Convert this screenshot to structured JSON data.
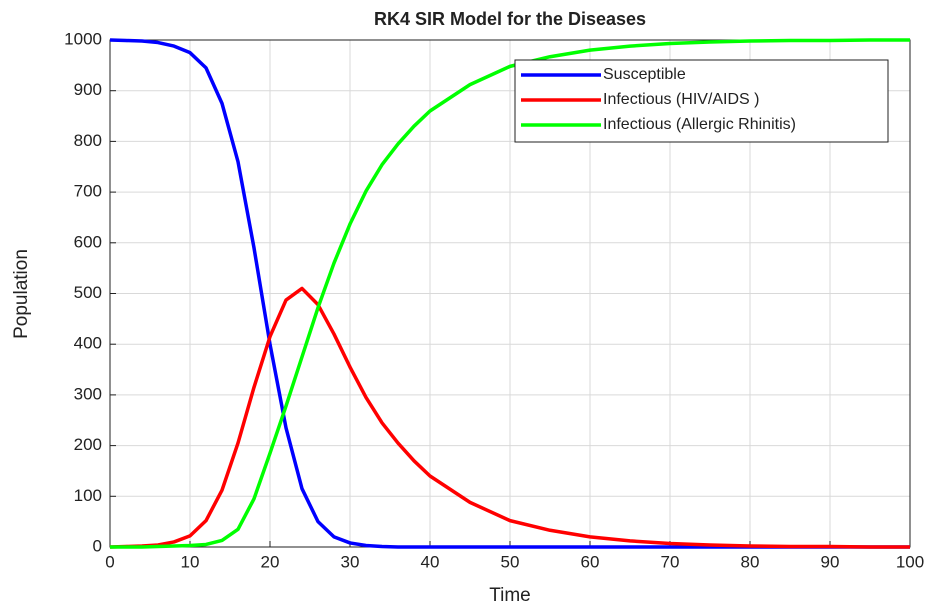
{
  "chart_data": {
    "type": "line",
    "title": "RK4 SIR Model for the Diseases",
    "xlabel": "Time",
    "ylabel": "Population",
    "x": [
      0,
      2,
      4,
      6,
      8,
      10,
      12,
      14,
      16,
      18,
      20,
      22,
      24,
      26,
      28,
      30,
      32,
      34,
      36,
      38,
      40,
      45,
      50,
      55,
      60,
      65,
      70,
      75,
      80,
      85,
      90,
      95,
      100
    ],
    "series": [
      {
        "name": "Susceptible",
        "color": "#0000ff",
        "values": [
          1000,
          999,
          998,
          995,
          988,
          975,
          945,
          875,
          760,
          590,
          400,
          235,
          115,
          50,
          20,
          8,
          3,
          1,
          0,
          0,
          0,
          0,
          0,
          0,
          0,
          0,
          0,
          0,
          0,
          0,
          0,
          0,
          0
        ]
      },
      {
        "name": "Infectious (HIV/AIDS )",
        "color": "#ff0000",
        "values": [
          0,
          1,
          2,
          4,
          10,
          22,
          52,
          112,
          205,
          315,
          415,
          487,
          510,
          478,
          420,
          355,
          295,
          245,
          205,
          170,
          140,
          88,
          52,
          33,
          20,
          12,
          7,
          4,
          2,
          1,
          1,
          0,
          0
        ]
      },
      {
        "name": "Infectious (Allergic Rhinitis)",
        "color": "#00ff00",
        "values": [
          0,
          0,
          0,
          1,
          2,
          3,
          5,
          13,
          35,
          95,
          185,
          278,
          375,
          472,
          560,
          637,
          702,
          754,
          795,
          830,
          860,
          912,
          948,
          967,
          980,
          988,
          993,
          996,
          998,
          999,
          999,
          1000,
          1000
        ]
      }
    ],
    "xlim": [
      0,
      100
    ],
    "xticks": [
      0,
      10,
      20,
      30,
      40,
      50,
      60,
      70,
      80,
      90,
      100
    ],
    "ylim": [
      0,
      1000
    ],
    "yticks": [
      0,
      100,
      200,
      300,
      400,
      500,
      600,
      700,
      800,
      900,
      1000
    ],
    "grid": true,
    "legend": "upper right"
  }
}
